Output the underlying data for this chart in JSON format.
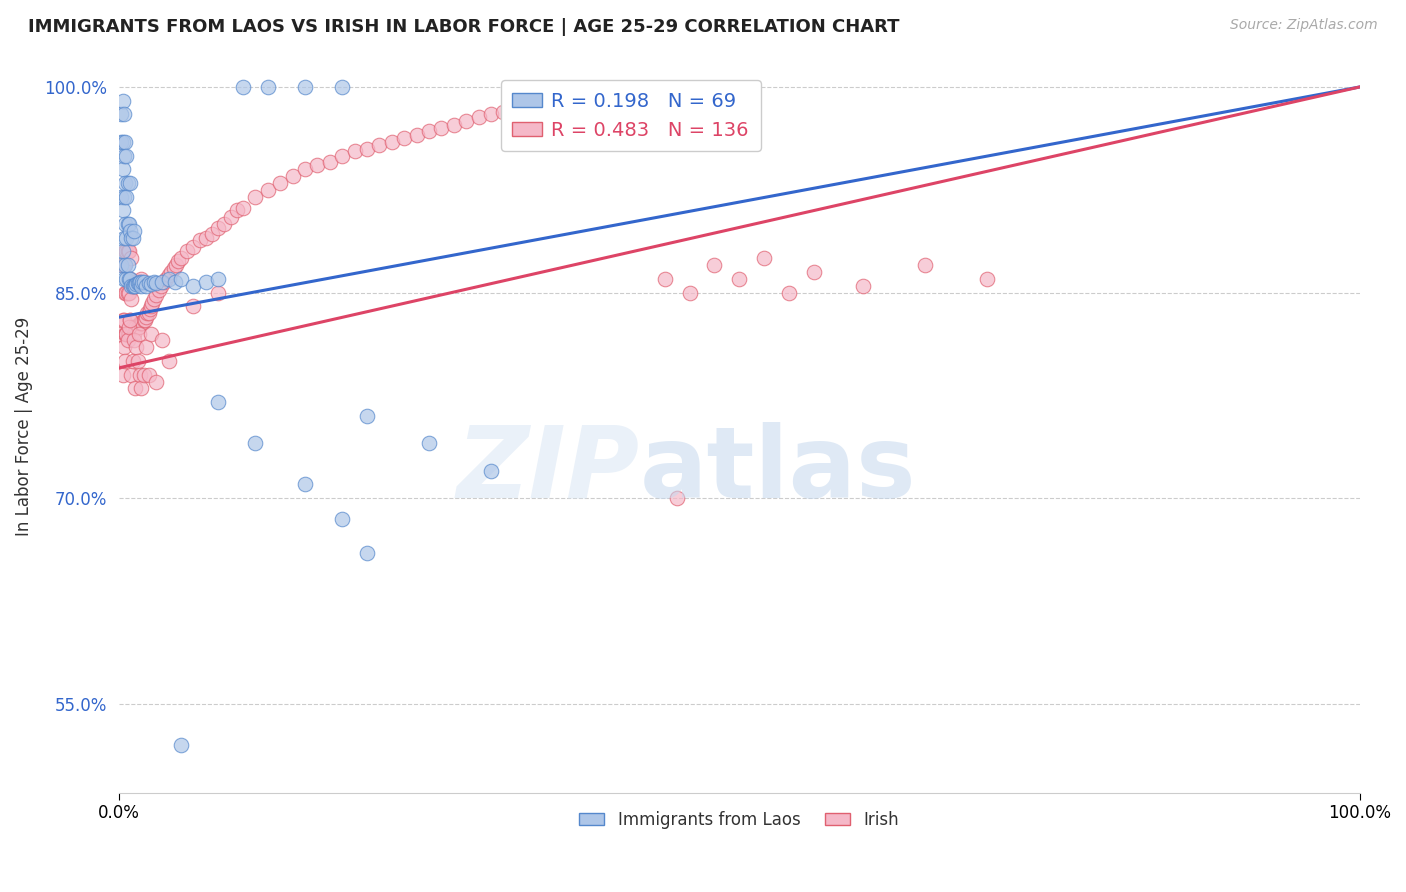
{
  "title": "IMMIGRANTS FROM LAOS VS IRISH IN LABOR FORCE | AGE 25-29 CORRELATION CHART",
  "source": "Source: ZipAtlas.com",
  "ylabel": "In Labor Force | Age 25-29",
  "xlim": [
    0.0,
    1.0
  ],
  "ylim": [
    0.485,
    1.02
  ],
  "yticks": [
    0.55,
    0.7,
    0.85,
    1.0
  ],
  "ytick_labels": [
    "55.0%",
    "70.0%",
    "85.0%",
    "100.0%"
  ],
  "xticks": [
    0.0,
    1.0
  ],
  "xtick_labels": [
    "0.0%",
    "100.0%"
  ],
  "r_laos": 0.198,
  "n_laos": 69,
  "r_irish": 0.483,
  "n_irish": 136,
  "laos_color": "#aec6e8",
  "irish_color": "#f5b8c8",
  "laos_edge": "#5588cc",
  "irish_edge": "#e06070",
  "laos_line_color": "#3366cc",
  "irish_line_color": "#dd4466",
  "background_color": "#ffffff",
  "laos_x": [
    0.002,
    0.002,
    0.002,
    0.002,
    0.003,
    0.003,
    0.003,
    0.003,
    0.003,
    0.004,
    0.004,
    0.004,
    0.004,
    0.004,
    0.005,
    0.005,
    0.005,
    0.005,
    0.006,
    0.006,
    0.006,
    0.006,
    0.007,
    0.007,
    0.007,
    0.008,
    0.008,
    0.009,
    0.009,
    0.009,
    0.01,
    0.01,
    0.011,
    0.011,
    0.012,
    0.012,
    0.013,
    0.014,
    0.015,
    0.016,
    0.017,
    0.018,
    0.019,
    0.02,
    0.022,
    0.024,
    0.026,
    0.028,
    0.03,
    0.035,
    0.04,
    0.045,
    0.05,
    0.06,
    0.07,
    0.08,
    0.1,
    0.12,
    0.15,
    0.18,
    0.2,
    0.25,
    0.3,
    0.08,
    0.11,
    0.15,
    0.18,
    0.2,
    0.05
  ],
  "laos_y": [
    0.87,
    0.92,
    0.96,
    0.98,
    0.88,
    0.91,
    0.94,
    0.96,
    0.99,
    0.86,
    0.89,
    0.92,
    0.95,
    0.98,
    0.87,
    0.9,
    0.93,
    0.96,
    0.86,
    0.89,
    0.92,
    0.95,
    0.87,
    0.9,
    0.93,
    0.86,
    0.9,
    0.86,
    0.895,
    0.93,
    0.855,
    0.89,
    0.855,
    0.89,
    0.855,
    0.895,
    0.855,
    0.856,
    0.857,
    0.857,
    0.858,
    0.855,
    0.858,
    0.858,
    0.855,
    0.857,
    0.856,
    0.858,
    0.857,
    0.858,
    0.86,
    0.858,
    0.86,
    0.855,
    0.858,
    0.86,
    1.0,
    1.0,
    1.0,
    1.0,
    0.76,
    0.74,
    0.72,
    0.77,
    0.74,
    0.71,
    0.685,
    0.66,
    0.52
  ],
  "irish_x": [
    0.002,
    0.003,
    0.003,
    0.004,
    0.004,
    0.005,
    0.005,
    0.005,
    0.006,
    0.006,
    0.006,
    0.007,
    0.007,
    0.007,
    0.008,
    0.008,
    0.008,
    0.009,
    0.009,
    0.01,
    0.01,
    0.01,
    0.011,
    0.011,
    0.012,
    0.012,
    0.013,
    0.013,
    0.014,
    0.014,
    0.015,
    0.015,
    0.016,
    0.016,
    0.017,
    0.017,
    0.018,
    0.018,
    0.019,
    0.02,
    0.021,
    0.022,
    0.023,
    0.024,
    0.025,
    0.026,
    0.027,
    0.028,
    0.03,
    0.032,
    0.034,
    0.036,
    0.038,
    0.04,
    0.042,
    0.044,
    0.046,
    0.048,
    0.05,
    0.055,
    0.06,
    0.065,
    0.07,
    0.075,
    0.08,
    0.085,
    0.09,
    0.095,
    0.1,
    0.11,
    0.12,
    0.13,
    0.14,
    0.15,
    0.16,
    0.17,
    0.18,
    0.19,
    0.2,
    0.21,
    0.22,
    0.23,
    0.24,
    0.25,
    0.26,
    0.27,
    0.28,
    0.29,
    0.3,
    0.31,
    0.32,
    0.33,
    0.34,
    0.35,
    0.36,
    0.37,
    0.38,
    0.39,
    0.4,
    0.42,
    0.44,
    0.46,
    0.48,
    0.5,
    0.52,
    0.54,
    0.56,
    0.6,
    0.65,
    0.7,
    0.003,
    0.004,
    0.005,
    0.006,
    0.007,
    0.008,
    0.009,
    0.01,
    0.011,
    0.012,
    0.013,
    0.014,
    0.015,
    0.016,
    0.017,
    0.018,
    0.02,
    0.022,
    0.024,
    0.026,
    0.03,
    0.035,
    0.04,
    0.06,
    0.08,
    0.45
  ],
  "irish_y": [
    0.82,
    0.83,
    0.87,
    0.83,
    0.87,
    0.82,
    0.85,
    0.88,
    0.82,
    0.85,
    0.88,
    0.82,
    0.85,
    0.88,
    0.82,
    0.85,
    0.88,
    0.83,
    0.86,
    0.82,
    0.845,
    0.875,
    0.825,
    0.855,
    0.82,
    0.855,
    0.825,
    0.858,
    0.825,
    0.858,
    0.825,
    0.858,
    0.825,
    0.858,
    0.828,
    0.858,
    0.828,
    0.86,
    0.828,
    0.83,
    0.83,
    0.832,
    0.835,
    0.835,
    0.838,
    0.84,
    0.842,
    0.845,
    0.848,
    0.852,
    0.855,
    0.858,
    0.86,
    0.863,
    0.865,
    0.868,
    0.87,
    0.873,
    0.875,
    0.88,
    0.883,
    0.888,
    0.89,
    0.893,
    0.897,
    0.9,
    0.905,
    0.91,
    0.912,
    0.92,
    0.925,
    0.93,
    0.935,
    0.94,
    0.943,
    0.945,
    0.95,
    0.953,
    0.955,
    0.958,
    0.96,
    0.963,
    0.965,
    0.968,
    0.97,
    0.972,
    0.975,
    0.978,
    0.98,
    0.982,
    0.983,
    0.985,
    0.987,
    0.988,
    0.99,
    0.992,
    0.993,
    0.995,
    0.997,
    0.998,
    0.86,
    0.85,
    0.87,
    0.86,
    0.875,
    0.85,
    0.865,
    0.855,
    0.87,
    0.86,
    0.79,
    0.81,
    0.8,
    0.82,
    0.815,
    0.825,
    0.83,
    0.79,
    0.8,
    0.815,
    0.78,
    0.81,
    0.8,
    0.82,
    0.79,
    0.78,
    0.79,
    0.81,
    0.79,
    0.82,
    0.785,
    0.815,
    0.8,
    0.84,
    0.85,
    0.7
  ]
}
